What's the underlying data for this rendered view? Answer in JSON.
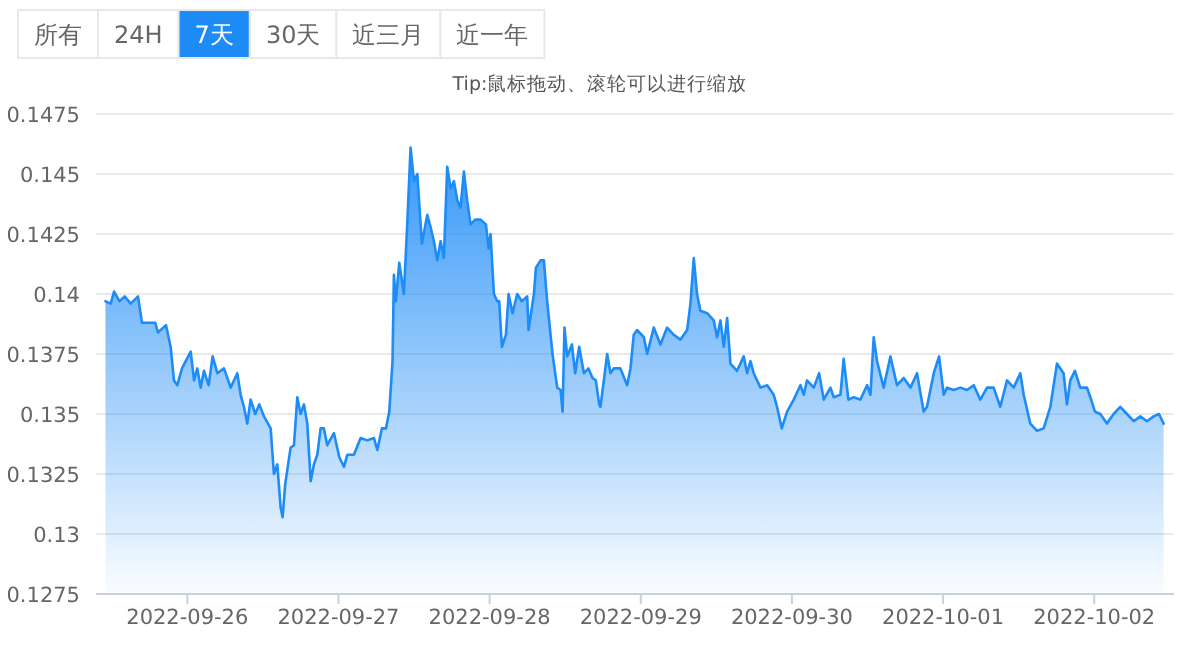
{
  "chart_data": {
    "type": "area",
    "subtitle": "Tip:鼠标拖动、滚轮可以进行缩放",
    "annotations": [
      "所有",
      "24H",
      "7天",
      "30天",
      "近三月",
      "近一年"
    ],
    "x": [
      "2022-09-25T11:00",
      "2022-09-25T11:50",
      "2022-09-25T12:22",
      "2022-09-25T13:13",
      "2022-09-25T14:03",
      "2022-09-25T15:01",
      "2022-09-25T16:10",
      "2022-09-25T16:48",
      "2022-09-25T17:39",
      "2022-09-25T18:55",
      "2022-09-25T19:20",
      "2022-09-25T20:37",
      "2022-09-25T21:21",
      "2022-09-25T21:53",
      "2022-09-25T22:25",
      "2022-09-25T23:09",
      "2022-09-26T00:32",
      "2022-09-26T01:04",
      "2022-09-26T01:35",
      "2022-09-26T02:07",
      "2022-09-26T02:39",
      "2022-09-26T03:23",
      "2022-09-26T04:01",
      "2022-09-26T04:46",
      "2022-09-26T05:49",
      "2022-09-26T06:53",
      "2022-09-26T07:56",
      "2022-09-26T08:28",
      "2022-09-26T08:59",
      "2022-09-26T09:31",
      "2022-09-26T10:03",
      "2022-09-26T10:47",
      "2022-09-26T11:26",
      "2022-09-26T12:10",
      "2022-09-26T13:14",
      "2022-09-26T13:45",
      "2022-09-26T14:17",
      "2022-09-26T14:49",
      "2022-09-26T15:08",
      "2022-09-26T15:33",
      "2022-09-26T16:24",
      "2022-09-26T16:56",
      "2022-09-26T17:28",
      "2022-09-26T17:59",
      "2022-09-26T18:31",
      "2022-09-26T19:03",
      "2022-09-26T19:35",
      "2022-09-26T20:06",
      "2022-09-26T20:38",
      "2022-09-26T21:10",
      "2022-09-26T21:41",
      "2022-09-26T22:13",
      "2022-09-26T23:17",
      "2022-09-27T00:08",
      "2022-09-27T00:52",
      "2022-09-27T01:24",
      "2022-09-27T02:27",
      "2022-09-27T03:31",
      "2022-09-27T04:34",
      "2022-09-27T05:38",
      "2022-09-27T06:10",
      "2022-09-27T06:54",
      "2022-09-27T07:32",
      "2022-09-27T08:04",
      "2022-09-27T08:35",
      "2022-09-27T08:48",
      "2022-09-27T09:07",
      "2022-09-27T09:39",
      "2022-09-27T10:23",
      "2022-09-27T10:55",
      "2022-09-27T11:27",
      "2022-09-27T11:59",
      "2022-09-27T12:31",
      "2022-09-27T13:15",
      "2022-09-27T14:06",
      "2022-09-27T14:37",
      "2022-09-27T15:09",
      "2022-09-27T15:41",
      "2022-09-27T16:13",
      "2022-09-27T16:44",
      "2022-09-27T17:16",
      "2022-09-27T17:48",
      "2022-09-27T18:20",
      "2022-09-27T18:52",
      "2022-09-27T19:23",
      "2022-09-27T19:55",
      "2022-09-27T20:26",
      "2022-09-27T20:58",
      "2022-09-27T21:43",
      "2022-09-27T22:34",
      "2022-09-27T23:25",
      "2022-09-27T23:50",
      "2022-09-28T00:09",
      "2022-09-28T00:41",
      "2022-09-28T01:13",
      "2022-09-28T01:31",
      "2022-09-28T01:57",
      "2022-09-28T02:35",
      "2022-09-28T03:01",
      "2022-09-28T03:38",
      "2022-09-28T04:23",
      "2022-09-28T05:07",
      "2022-09-28T05:58",
      "2022-09-28T06:11",
      "2022-09-28T07:02",
      "2022-09-28T07:21",
      "2022-09-28T08:05",
      "2022-09-28T08:37",
      "2022-09-28T09:08",
      "2022-09-28T09:59",
      "2022-09-28T10:44",
      "2022-09-28T11:16",
      "2022-09-28T11:35",
      "2022-09-28T11:53",
      "2022-09-28T12:19",
      "2022-09-28T13:04",
      "2022-09-28T13:35",
      "2022-09-28T14:13",
      "2022-09-28T14:58",
      "2022-09-28T15:42",
      "2022-09-28T16:20",
      "2022-09-28T16:52",
      "2022-09-28T17:24",
      "2022-09-28T17:36",
      "2022-09-28T18:40",
      "2022-09-28T19:11",
      "2022-09-28T19:43",
      "2022-09-28T20:46",
      "2022-09-28T21:50",
      "2022-09-28T22:22",
      "2022-09-28T22:53",
      "2022-09-28T23:25",
      "2022-09-29T00:29",
      "2022-09-29T01:01",
      "2022-09-29T02:04",
      "2022-09-29T03:07",
      "2022-09-29T04:11",
      "2022-09-29T05:14",
      "2022-09-29T06:18",
      "2022-09-29T07:22",
      "2022-09-29T07:53",
      "2022-09-29T08:25",
      "2022-09-29T08:56",
      "2022-09-29T09:28",
      "2022-09-29T10:32",
      "2022-09-29T11:35",
      "2022-09-29T12:07",
      "2022-09-29T12:39",
      "2022-09-29T13:11",
      "2022-09-29T13:43",
      "2022-09-29T14:14",
      "2022-09-29T15:17",
      "2022-09-29T16:21",
      "2022-09-29T16:53",
      "2022-09-29T17:25",
      "2022-09-29T17:56",
      "2022-09-29T19:00",
      "2022-09-29T20:04",
      "2022-09-29T21:07",
      "2022-09-29T21:38",
      "2022-09-29T22:23",
      "2022-09-29T23:14",
      "2022-09-30T00:17",
      "2022-09-30T01:21",
      "2022-09-30T01:53",
      "2022-09-30T02:24",
      "2022-09-30T03:28",
      "2022-09-30T04:19",
      "2022-09-30T05:03",
      "2022-09-30T06:07",
      "2022-09-30T06:38",
      "2022-09-30T07:42",
      "2022-09-30T08:13",
      "2022-09-30T08:58",
      "2022-09-30T09:49",
      "2022-09-30T10:52",
      "2022-09-30T11:56",
      "2022-09-30T12:28",
      "2022-09-30T12:59",
      "2022-09-30T13:31",
      "2022-09-30T14:34",
      "2022-09-30T15:38",
      "2022-09-30T16:41",
      "2022-09-30T17:45",
      "2022-09-30T18:49",
      "2022-09-30T19:52",
      "2022-09-30T20:55",
      "2022-09-30T21:27",
      "2022-09-30T22:31",
      "2022-09-30T23:22",
      "2022-10-01T00:06",
      "2022-10-01T00:38",
      "2022-10-01T01:41",
      "2022-10-01T02:44",
      "2022-10-01T03:48",
      "2022-10-01T04:52",
      "2022-10-01T05:55",
      "2022-10-01T06:59",
      "2022-10-01T08:02",
      "2022-10-01T09:05",
      "2022-10-01T10:09",
      "2022-10-01T11:13",
      "2022-10-01T11:44",
      "2022-10-01T12:16",
      "2022-10-01T12:48",
      "2022-10-01T13:51",
      "2022-10-01T14:55",
      "2022-10-01T15:58",
      "2022-10-01T17:02",
      "2022-10-01T18:05",
      "2022-10-01T19:08",
      "2022-10-01T19:40",
      "2022-10-01T20:12",
      "2022-10-01T20:56",
      "2022-10-01T21:47",
      "2022-10-01T22:51",
      "2022-10-01T23:23",
      "2022-10-02T00:07",
      "2022-10-02T00:58",
      "2022-10-02T02:01",
      "2022-10-02T03:05",
      "2022-10-02T04:08",
      "2022-10-02T05:12",
      "2022-10-02T06:16",
      "2022-10-02T07:19",
      "2022-10-02T08:22",
      "2022-10-02T09:26",
      "2022-10-02T10:17",
      "2022-10-02T11:01"
    ],
    "series": [
      {
        "color": "#1e8cf7",
        "values": [
          0.1397,
          0.1396,
          0.1401,
          0.1397,
          0.1399,
          0.1396,
          0.1399,
          0.1388,
          0.1388,
          0.1388,
          0.1384,
          0.1387,
          0.1378,
          0.1364,
          0.1362,
          0.1369,
          0.1376,
          0.1364,
          0.1369,
          0.1361,
          0.1368,
          0.1362,
          0.1374,
          0.1367,
          0.1369,
          0.1361,
          0.1367,
          0.1358,
          0.1353,
          0.1346,
          0.1356,
          0.135,
          0.1354,
          0.1349,
          0.1344,
          0.1325,
          0.1329,
          0.1311,
          0.1307,
          0.1321,
          0.1336,
          0.1337,
          0.1357,
          0.135,
          0.1354,
          0.1346,
          0.1322,
          0.1329,
          0.1333,
          0.1344,
          0.1344,
          0.1337,
          0.1342,
          0.1332,
          0.1328,
          0.1333,
          0.1333,
          0.134,
          0.1339,
          0.134,
          0.1335,
          0.1344,
          0.1344,
          0.1351,
          0.1372,
          0.1408,
          0.1397,
          0.1413,
          0.14,
          0.1429,
          0.1461,
          0.1447,
          0.145,
          0.1421,
          0.1433,
          0.1428,
          0.1422,
          0.1414,
          0.1422,
          0.1415,
          0.1453,
          0.1444,
          0.1447,
          0.1439,
          0.1436,
          0.1451,
          0.1439,
          0.1429,
          0.1431,
          0.1431,
          0.1429,
          0.1419,
          0.1425,
          0.14,
          0.1397,
          0.1397,
          0.1378,
          0.1383,
          0.14,
          0.1392,
          0.14,
          0.1397,
          0.1399,
          0.1385,
          0.14,
          0.1411,
          0.1414,
          0.1414,
          0.1397,
          0.1375,
          0.1361,
          0.136,
          0.1351,
          0.1386,
          0.1374,
          0.1379,
          0.1367,
          0.1378,
          0.1367,
          0.1369,
          0.1365,
          0.1364,
          0.1354,
          0.1353,
          0.1375,
          0.1367,
          0.1369,
          0.1369,
          0.1362,
          0.1369,
          0.1383,
          0.1385,
          0.1382,
          0.1375,
          0.1386,
          0.1379,
          0.1386,
          0.1383,
          0.1381,
          0.1385,
          0.1396,
          0.1415,
          0.14,
          0.1393,
          0.1392,
          0.1389,
          0.1382,
          0.1389,
          0.1378,
          0.139,
          0.1371,
          0.1368,
          0.1374,
          0.1367,
          0.1372,
          0.1367,
          0.1361,
          0.1362,
          0.1358,
          0.1353,
          0.1344,
          0.1351,
          0.1356,
          0.1362,
          0.1358,
          0.1364,
          0.1361,
          0.1367,
          0.1356,
          0.1361,
          0.1357,
          0.1358,
          0.1373,
          0.1356,
          0.1357,
          0.1356,
          0.1362,
          0.1358,
          0.1382,
          0.1372,
          0.1361,
          0.1374,
          0.1362,
          0.1365,
          0.1361,
          0.1367,
          0.1351,
          0.1353,
          0.1367,
          0.1374,
          0.1358,
          0.1361,
          0.136,
          0.1361,
          0.136,
          0.1362,
          0.1356,
          0.1361,
          0.1361,
          0.1353,
          0.1364,
          0.1361,
          0.1364,
          0.1367,
          0.1358,
          0.1346,
          0.1343,
          0.1344,
          0.1353,
          0.1371,
          0.1367,
          0.1354,
          0.1364,
          0.1368,
          0.1361,
          0.1361,
          0.1357,
          0.1351,
          0.135,
          0.1346,
          0.135,
          0.1353,
          0.135,
          0.1347,
          0.1349,
          0.1347,
          0.1349,
          0.135,
          0.1346
        ]
      }
    ],
    "xlim": [
      "2022-09-25T09:30",
      "2022-10-02T12:40"
    ],
    "xticks": [
      "2022-09-26",
      "2022-09-27",
      "2022-09-28",
      "2022-09-29",
      "2022-09-30",
      "2022-10-01",
      "2022-10-02"
    ],
    "ylim": [
      0.1275,
      0.1475
    ],
    "yticks": [
      0.1275,
      0.13,
      0.1325,
      0.135,
      0.1375,
      0.14,
      0.1425,
      0.145,
      0.1475
    ],
    "grid": "y"
  }
}
